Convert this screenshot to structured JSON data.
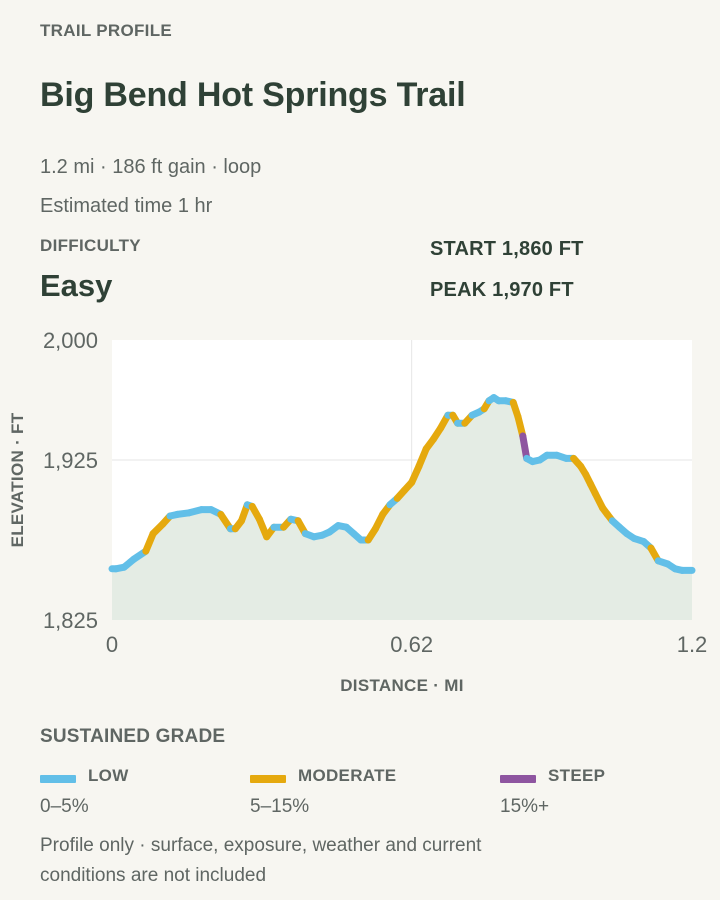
{
  "header": {
    "eyebrow": "TRAIL PROFILE",
    "title": "Big Bend Hot Springs Trail",
    "meta_line1": "1.2 mi · 186 ft gain · loop",
    "meta_line2": "Estimated time 1 hr"
  },
  "difficulty": {
    "label": "DIFFICULTY",
    "value": "Easy"
  },
  "stats": {
    "start": "START 1,860 FT",
    "peak": "PEAK 1,970 FT"
  },
  "chart_data": {
    "type": "area",
    "xlabel": "DISTANCE · MI",
    "ylabel": "ELEVATION · FT",
    "xlim": [
      0,
      1.2
    ],
    "ylim": [
      1825,
      2000
    ],
    "x_ticks": [
      0,
      0.62,
      1.2
    ],
    "x_tick_labels": [
      "0",
      "0.62",
      "1.2"
    ],
    "y_ticks": [
      2000,
      1925,
      1825
    ],
    "y_tick_labels": [
      "2,000",
      "1,925",
      "1,825"
    ],
    "grid": true,
    "colors": {
      "low": "#62bfe8",
      "moderate": "#e5a90e",
      "steep": "#8e55a0",
      "fill": "#e4ece4",
      "grid": "#e6e6e6"
    },
    "points": [
      {
        "x": 0.0,
        "y": 1857
      },
      {
        "x": 0.008,
        "y": 1857
      },
      {
        "x": 0.025,
        "y": 1858
      },
      {
        "x": 0.045,
        "y": 1863
      },
      {
        "x": 0.07,
        "y": 1868
      },
      {
        "x": 0.085,
        "y": 1879
      },
      {
        "x": 0.105,
        "y": 1885
      },
      {
        "x": 0.12,
        "y": 1890
      },
      {
        "x": 0.135,
        "y": 1891
      },
      {
        "x": 0.16,
        "y": 1892
      },
      {
        "x": 0.185,
        "y": 1894
      },
      {
        "x": 0.205,
        "y": 1894
      },
      {
        "x": 0.225,
        "y": 1891
      },
      {
        "x": 0.245,
        "y": 1882
      },
      {
        "x": 0.255,
        "y": 1882
      },
      {
        "x": 0.268,
        "y": 1887
      },
      {
        "x": 0.28,
        "y": 1897
      },
      {
        "x": 0.29,
        "y": 1896
      },
      {
        "x": 0.305,
        "y": 1888
      },
      {
        "x": 0.32,
        "y": 1877
      },
      {
        "x": 0.335,
        "y": 1883
      },
      {
        "x": 0.355,
        "y": 1883
      },
      {
        "x": 0.37,
        "y": 1888
      },
      {
        "x": 0.385,
        "y": 1887
      },
      {
        "x": 0.4,
        "y": 1879
      },
      {
        "x": 0.418,
        "y": 1877
      },
      {
        "x": 0.435,
        "y": 1878
      },
      {
        "x": 0.45,
        "y": 1880
      },
      {
        "x": 0.468,
        "y": 1884
      },
      {
        "x": 0.485,
        "y": 1883
      },
      {
        "x": 0.5,
        "y": 1879
      },
      {
        "x": 0.515,
        "y": 1875
      },
      {
        "x": 0.53,
        "y": 1875
      },
      {
        "x": 0.545,
        "y": 1882
      },
      {
        "x": 0.56,
        "y": 1891
      },
      {
        "x": 0.575,
        "y": 1897
      },
      {
        "x": 0.59,
        "y": 1901
      },
      {
        "x": 0.605,
        "y": 1906
      },
      {
        "x": 0.62,
        "y": 1911
      },
      {
        "x": 0.635,
        "y": 1921
      },
      {
        "x": 0.65,
        "y": 1932
      },
      {
        "x": 0.665,
        "y": 1938
      },
      {
        "x": 0.68,
        "y": 1945
      },
      {
        "x": 0.695,
        "y": 1953
      },
      {
        "x": 0.705,
        "y": 1953
      },
      {
        "x": 0.715,
        "y": 1948
      },
      {
        "x": 0.73,
        "y": 1948
      },
      {
        "x": 0.745,
        "y": 1953
      },
      {
        "x": 0.76,
        "y": 1955
      },
      {
        "x": 0.77,
        "y": 1957
      },
      {
        "x": 0.78,
        "y": 1962
      },
      {
        "x": 0.79,
        "y": 1964
      },
      {
        "x": 0.8,
        "y": 1962
      },
      {
        "x": 0.815,
        "y": 1962
      },
      {
        "x": 0.83,
        "y": 1961
      },
      {
        "x": 0.84,
        "y": 1952
      },
      {
        "x": 0.85,
        "y": 1940
      },
      {
        "x": 0.858,
        "y": 1926
      },
      {
        "x": 0.87,
        "y": 1924
      },
      {
        "x": 0.885,
        "y": 1925
      },
      {
        "x": 0.9,
        "y": 1928
      },
      {
        "x": 0.92,
        "y": 1928
      },
      {
        "x": 0.94,
        "y": 1926
      },
      {
        "x": 0.955,
        "y": 1926
      },
      {
        "x": 0.97,
        "y": 1921
      },
      {
        "x": 0.98,
        "y": 1916
      },
      {
        "x": 0.99,
        "y": 1910
      },
      {
        "x": 1.0,
        "y": 1904
      },
      {
        "x": 1.015,
        "y": 1895
      },
      {
        "x": 1.025,
        "y": 1891
      },
      {
        "x": 1.035,
        "y": 1887
      },
      {
        "x": 1.05,
        "y": 1883
      },
      {
        "x": 1.065,
        "y": 1879
      },
      {
        "x": 1.08,
        "y": 1876
      },
      {
        "x": 1.1,
        "y": 1874
      },
      {
        "x": 1.115,
        "y": 1870
      },
      {
        "x": 1.13,
        "y": 1862
      },
      {
        "x": 1.15,
        "y": 1860
      },
      {
        "x": 1.165,
        "y": 1857
      },
      {
        "x": 1.18,
        "y": 1856
      },
      {
        "x": 1.2,
        "y": 1856
      }
    ]
  },
  "legend": {
    "title": "SUSTAINED GRADE",
    "items": [
      {
        "name": "LOW",
        "range": "0–5%",
        "color": "#62bfe8"
      },
      {
        "name": "MODERATE",
        "range": "5–15%",
        "color": "#e5a90e"
      },
      {
        "name": "STEEP",
        "range": "15%+",
        "color": "#8e55a0"
      }
    ]
  },
  "footnote": "Profile only · surface, exposure, weather and current conditions are not included"
}
